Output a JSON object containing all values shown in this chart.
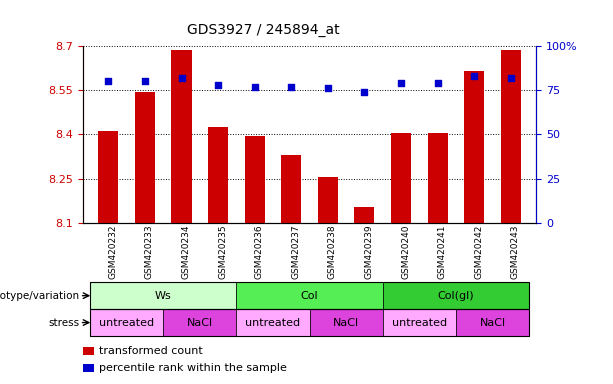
{
  "title": "GDS3927 / 245894_at",
  "samples": [
    "GSM420232",
    "GSM420233",
    "GSM420234",
    "GSM420235",
    "GSM420236",
    "GSM420237",
    "GSM420238",
    "GSM420239",
    "GSM420240",
    "GSM420241",
    "GSM420242",
    "GSM420243"
  ],
  "bar_values": [
    8.41,
    8.545,
    8.685,
    8.425,
    8.395,
    8.33,
    8.255,
    8.155,
    8.405,
    8.405,
    8.615,
    8.685
  ],
  "dot_values": [
    80,
    80,
    82,
    78,
    77,
    77,
    76,
    74,
    79,
    79,
    83,
    82
  ],
  "bar_color": "#cc0000",
  "dot_color": "#0000cc",
  "ymin": 8.1,
  "ymax": 8.7,
  "y2min": 0,
  "y2max": 100,
  "yticks": [
    8.1,
    8.25,
    8.4,
    8.55,
    8.7
  ],
  "y2ticks": [
    0,
    25,
    50,
    75,
    100
  ],
  "genotype_groups": [
    {
      "label": "Ws",
      "start": 0,
      "end": 3,
      "color": "#ccffcc"
    },
    {
      "label": "Col",
      "start": 4,
      "end": 7,
      "color": "#55ee55"
    },
    {
      "label": "Col(gl)",
      "start": 8,
      "end": 11,
      "color": "#33cc33"
    }
  ],
  "stress_groups": [
    {
      "label": "untreated",
      "start": 0,
      "end": 1,
      "color": "#ffaaff"
    },
    {
      "label": "NaCl",
      "start": 2,
      "end": 3,
      "color": "#dd44dd"
    },
    {
      "label": "untreated",
      "start": 4,
      "end": 5,
      "color": "#ffaaff"
    },
    {
      "label": "NaCl",
      "start": 6,
      "end": 7,
      "color": "#dd44dd"
    },
    {
      "label": "untreated",
      "start": 8,
      "end": 9,
      "color": "#ffaaff"
    },
    {
      "label": "NaCl",
      "start": 10,
      "end": 11,
      "color": "#dd44dd"
    }
  ],
  "legend_bar_label": "transformed count",
  "legend_dot_label": "percentile rank within the sample",
  "bar_width": 0.55,
  "genotype_label": "genotype/variation",
  "stress_label": "stress"
}
